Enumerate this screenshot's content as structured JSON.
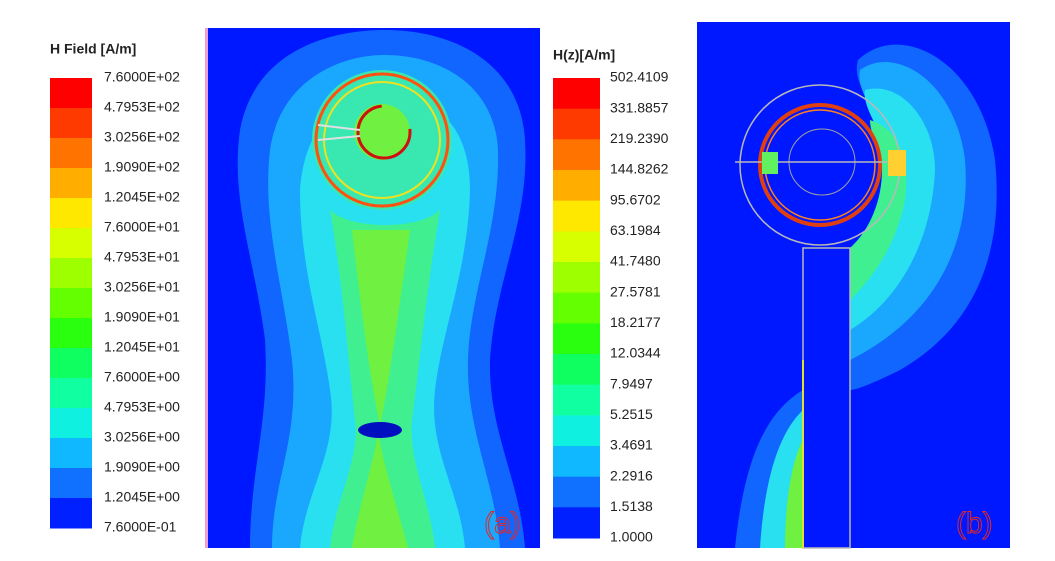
{
  "panels": [
    {
      "legend_title": "H Field [A/m]",
      "label": "(a)",
      "legend_labels": [
        "7.6000E+02",
        "4.7953E+02",
        "3.0256E+02",
        "1.9090E+02",
        "1.2045E+02",
        "7.6000E+01",
        "4.7953E+01",
        "3.0256E+01",
        "1.9090E+01",
        "1.2045E+01",
        "7.6000E+00",
        "4.7953E+00",
        "3.0256E+00",
        "1.9090E+00",
        "1.2045E+00",
        "7.6000E-01"
      ]
    },
    {
      "legend_title": "H(z)[A/m]",
      "label": "(b)",
      "legend_labels": [
        "502.4109",
        "331.8857",
        "219.2390",
        "144.8262",
        "95.6702",
        "63.1984",
        "41.7480",
        "27.5781",
        "18.2177",
        "12.0344",
        "7.9497",
        "5.2515",
        "3.4691",
        "2.2916",
        "1.5138",
        "1.0000"
      ]
    }
  ]
}
